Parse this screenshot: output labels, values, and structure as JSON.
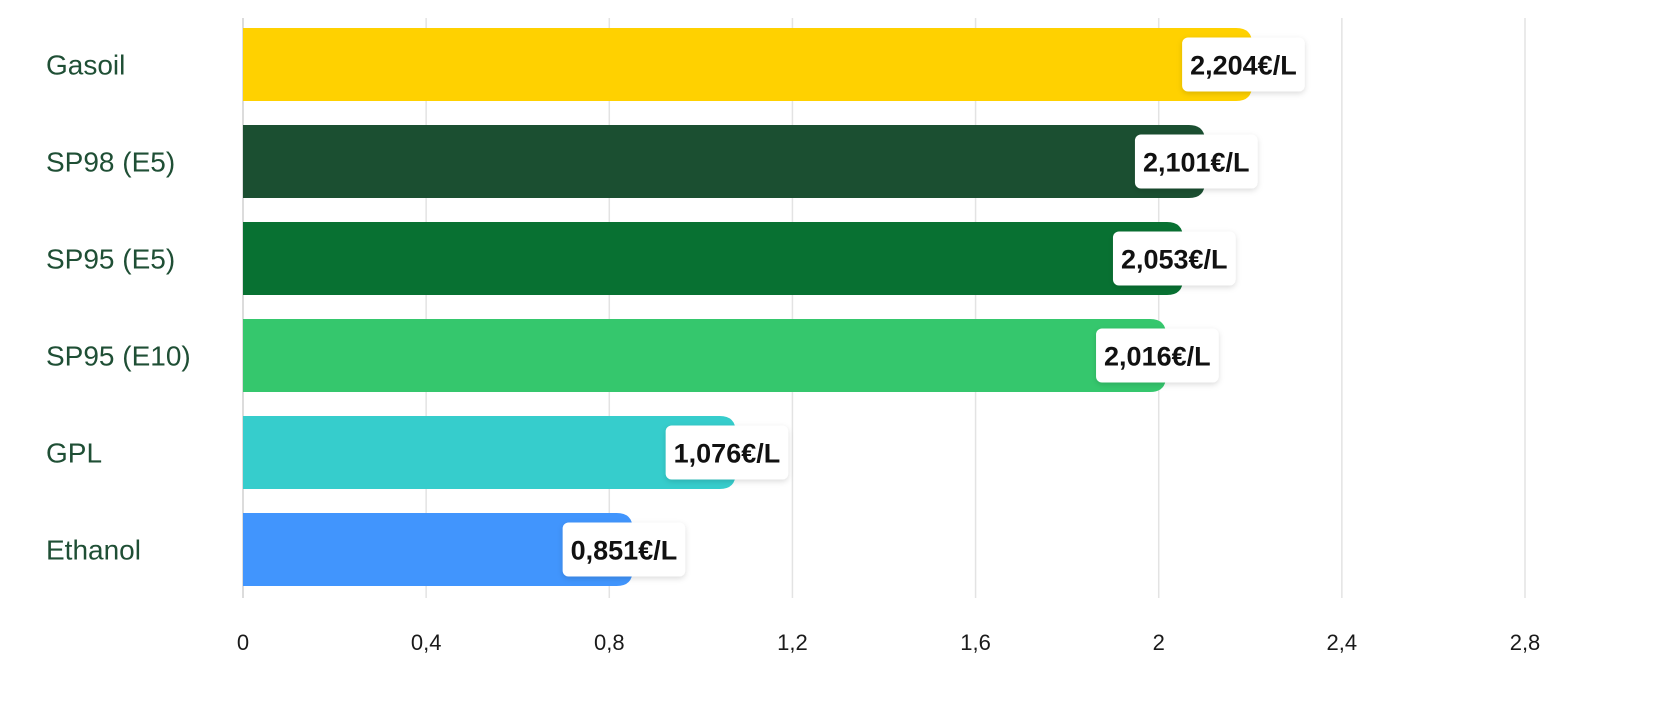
{
  "chart_data": {
    "type": "bar",
    "orientation": "horizontal",
    "categories": [
      "Gasoil",
      "SP98 (E5)",
      "SP95 (E5)",
      "SP95 (E10)",
      "GPL",
      "Ethanol"
    ],
    "values": [
      2.204,
      2.101,
      2.053,
      2.016,
      1.076,
      0.851
    ],
    "value_labels": [
      "2,204€/L",
      "2,101€/L",
      "2,053€/L",
      "2,016€/L",
      "1,076€/L",
      "0,851€/L"
    ],
    "colors": [
      "#ffd100",
      "#1b4f31",
      "#087132",
      "#35c76d",
      "#36cdcc",
      "#4195fd"
    ],
    "xlim": [
      0,
      2.8
    ],
    "xticks": [
      0,
      0.4,
      0.8,
      1.2,
      1.6,
      2,
      2.4,
      2.8
    ],
    "xtick_labels": [
      "0",
      "0,4",
      "0,8",
      "1,2",
      "1,6",
      "2",
      "2,4",
      "2,8"
    ],
    "grid": true,
    "title": "",
    "xlabel": "",
    "ylabel": ""
  }
}
